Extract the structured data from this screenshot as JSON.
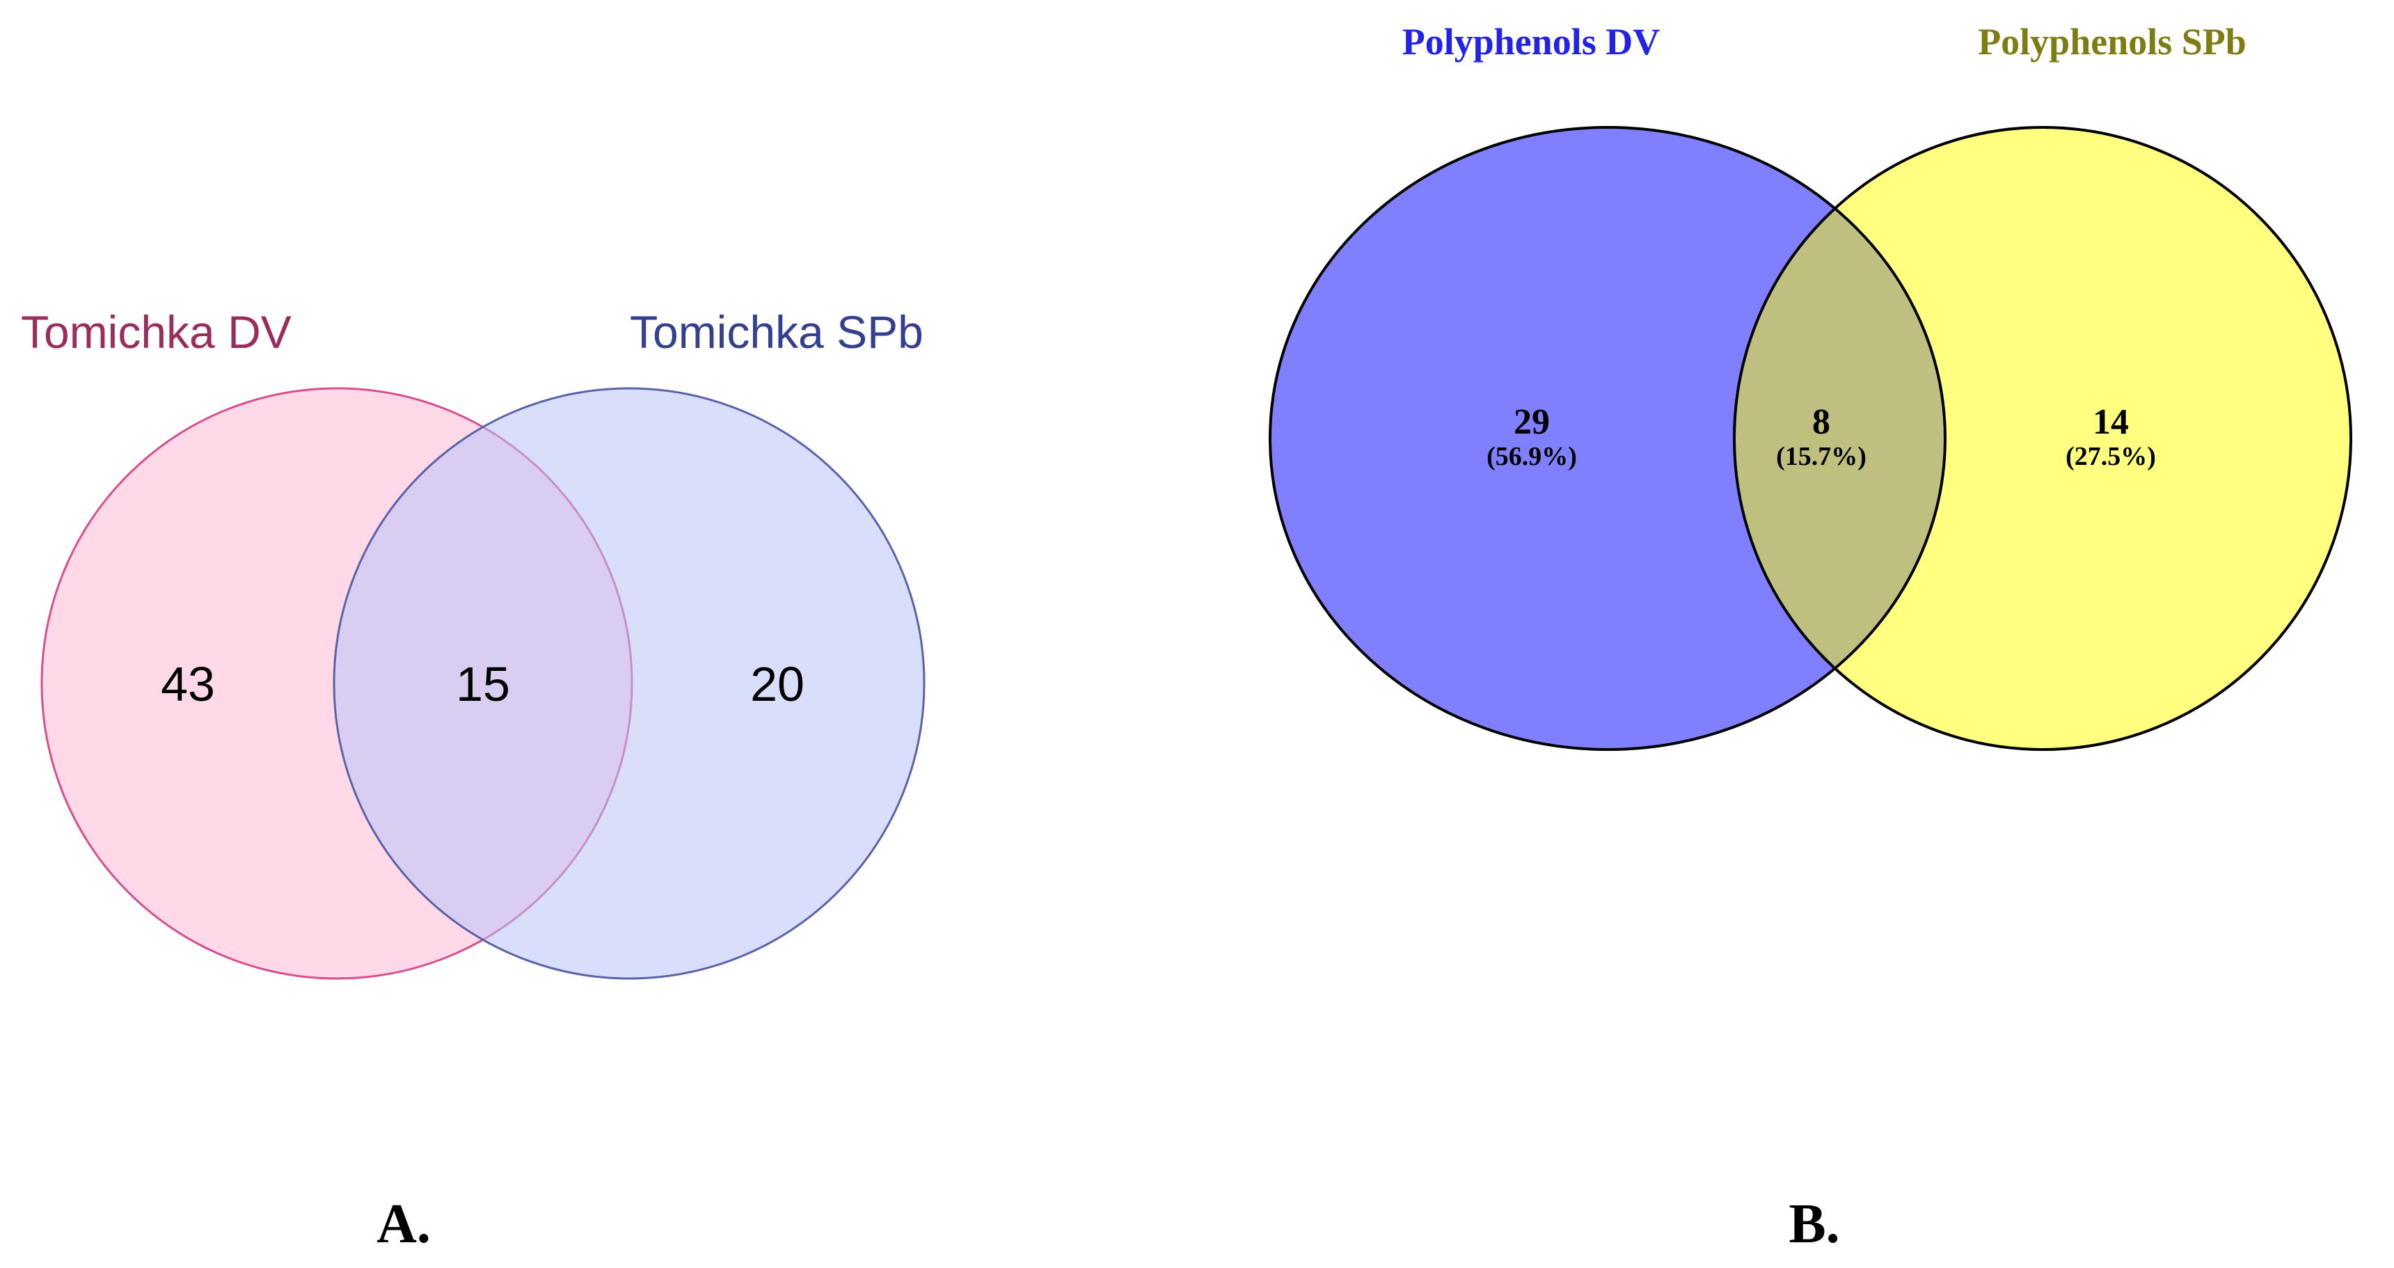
{
  "panels": [
    {
      "panel_label": "A.",
      "sets": [
        {
          "name": "Tomichka DV",
          "label_color": "#9b2d5c",
          "fill": "#ffb9d6",
          "fill_opacity": 0.55,
          "stroke": "#d94f8e"
        },
        {
          "name": "Tomichka SPb",
          "label_color": "#33408f",
          "fill": "#b9c3f7",
          "fill_opacity": 0.55,
          "stroke": "#5a63a8"
        }
      ],
      "regions": [
        {
          "count": "43",
          "percent": ""
        },
        {
          "count": "15",
          "percent": ""
        },
        {
          "count": "20",
          "percent": ""
        }
      ]
    },
    {
      "panel_label": "B.",
      "sets": [
        {
          "name": "Polyphenols DV",
          "label_color": "#2323e6",
          "fill": "#8080ff",
          "fill_opacity": 1,
          "stroke": "#000000"
        },
        {
          "name": "Polyphenols SPb",
          "label_color": "#7d7d14",
          "fill": "#ffff80",
          "fill_opacity": 1,
          "stroke": "#000000"
        }
      ],
      "intersection_fill": "#bfbf80",
      "regions": [
        {
          "count": "29",
          "percent": "(56.9%)"
        },
        {
          "count": "8",
          "percent": "(15.7%)"
        },
        {
          "count": "14",
          "percent": "(27.5%)"
        }
      ]
    }
  ]
}
